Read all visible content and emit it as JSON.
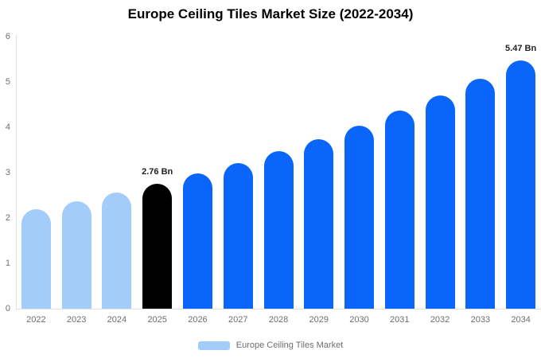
{
  "title": "Europe Ceiling Tiles Market Size (2022-2034)",
  "legend": {
    "items": [
      {
        "label": "Europe Ceiling Tiles Market",
        "color": "#a2ccfa"
      }
    ]
  },
  "colors": {
    "historical": "#a2ccfa",
    "base_year": "#000000",
    "forecast": "#0a66fb",
    "axis_line": "#e0e0e0",
    "muted_text": "#6e6e6e",
    "label_text": "#222222"
  },
  "chart_data": {
    "type": "bar",
    "title": "Europe Ceiling Tiles Market Size (2022-2034)",
    "xlabel": "",
    "ylabel": "",
    "unit": "Bn",
    "categories": [
      "2022",
      "2023",
      "2024",
      "2025",
      "2026",
      "2027",
      "2028",
      "2029",
      "2030",
      "2031",
      "2032",
      "2033",
      "2034"
    ],
    "values": [
      2.2,
      2.37,
      2.56,
      2.76,
      2.98,
      3.21,
      3.47,
      3.74,
      4.04,
      4.36,
      4.7,
      5.07,
      5.47
    ],
    "bar_colors": [
      "#a2ccfa",
      "#a2ccfa",
      "#a2ccfa",
      "#000000",
      "#0a66fb",
      "#0a66fb",
      "#0a66fb",
      "#0a66fb",
      "#0a66fb",
      "#0a66fb",
      "#0a66fb",
      "#0a66fb",
      "#0a66fb"
    ],
    "annotations": [
      {
        "category": "2025",
        "text": "2.76 Bn"
      },
      {
        "category": "2034",
        "text": "5.47 Bn"
      }
    ],
    "ylim": [
      0,
      6
    ],
    "yticks": [
      0,
      1,
      2,
      3,
      4,
      5,
      6
    ],
    "grid": false,
    "legend_position": "bottom"
  }
}
